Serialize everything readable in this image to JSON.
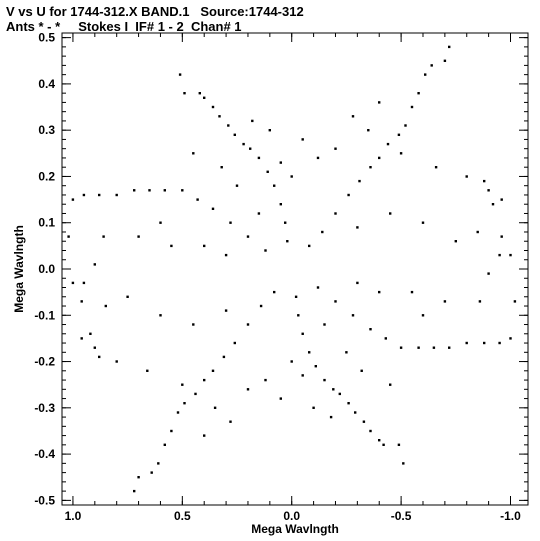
{
  "header": {
    "line1": "V vs U for 1744-312.X BAND.1   Source:1744-312",
    "line2": "Ants * - *     Stokes I  IF# 1 - 2  Chan# 1"
  },
  "chart_data": {
    "type": "scatter",
    "title": "V vs U for 1744-312.X BAND.1   Source:1744-312",
    "subtitle": "Ants * - *     Stokes I  IF# 1 - 2  Chan# 1",
    "xlabel": "Mega Wavlngth",
    "ylabel": "Mega Wavlngth",
    "xlim": [
      1.05,
      -1.08
    ],
    "ylim": [
      -0.51,
      0.51
    ],
    "x_reversed": true,
    "x_ticks": [
      1.0,
      0.5,
      0.0,
      -0.5,
      -1.0
    ],
    "x_tick_labels": [
      "1.0",
      "0.5",
      "0.0",
      "-0.5",
      "-1.0"
    ],
    "y_ticks": [
      0.5,
      0.4,
      0.3,
      0.2,
      0.1,
      0.0,
      -0.1,
      -0.2,
      -0.3,
      -0.4,
      -0.5
    ],
    "y_tick_labels": [
      "0.5",
      "0.4",
      "0.3",
      "0.2",
      "0.1",
      "0.0",
      "-0.1",
      "-0.2",
      "-0.3",
      "-0.4",
      "-0.5"
    ],
    "grid": false,
    "marker_color": "#000000",
    "pattern": "six-armed symmetric uv-coverage star; arms toward (0.51,0.42)/(-0.51,-0.42), (-0.72,0.48)/(0.72,-0.48), (1.0,0.15)/(-1.0,-0.15); points symmetric about origin",
    "series": [
      {
        "points": [
          [
            0.51,
            0.42
          ],
          [
            0.49,
            0.38
          ],
          [
            0.42,
            0.38
          ],
          [
            0.4,
            0.37
          ],
          [
            0.36,
            0.35
          ],
          [
            0.33,
            0.33
          ],
          [
            0.29,
            0.31
          ],
          [
            0.26,
            0.29
          ],
          [
            0.22,
            0.27
          ],
          [
            0.19,
            0.26
          ],
          [
            0.15,
            0.24
          ],
          [
            0.11,
            0.21
          ],
          [
            0.08,
            0.18
          ],
          [
            0.05,
            0.14
          ],
          [
            0.03,
            0.1
          ],
          [
            0.02,
            0.06
          ],
          [
            -0.72,
            0.48
          ],
          [
            -0.7,
            0.45
          ],
          [
            -0.64,
            0.44
          ],
          [
            -0.61,
            0.42
          ],
          [
            -0.58,
            0.38
          ],
          [
            -0.55,
            0.35
          ],
          [
            -0.52,
            0.31
          ],
          [
            -0.49,
            0.29
          ],
          [
            -0.44,
            0.27
          ],
          [
            -0.4,
            0.24
          ],
          [
            -0.36,
            0.22
          ],
          [
            -0.31,
            0.19
          ],
          [
            -0.26,
            0.16
          ],
          [
            -0.2,
            0.12
          ],
          [
            -0.14,
            0.08
          ],
          [
            -0.08,
            0.05
          ],
          [
            1.0,
            0.15
          ],
          [
            0.95,
            0.16
          ],
          [
            0.88,
            0.16
          ],
          [
            0.8,
            0.16
          ],
          [
            0.72,
            0.17
          ],
          [
            0.65,
            0.17
          ],
          [
            0.58,
            0.17
          ],
          [
            0.5,
            0.17
          ],
          [
            0.43,
            0.15
          ],
          [
            0.36,
            0.13
          ],
          [
            0.28,
            0.1
          ],
          [
            0.2,
            0.07
          ],
          [
            0.12,
            0.04
          ],
          [
            1.02,
            0.07
          ],
          [
            1.0,
            -0.03
          ],
          [
            0.96,
            -0.07
          ],
          [
            0.92,
            -0.14
          ],
          [
            0.88,
            -0.19
          ],
          [
            0.9,
            0.01
          ],
          [
            0.86,
            0.07
          ],
          [
            0.45,
            0.25
          ],
          [
            0.32,
            0.22
          ],
          [
            0.25,
            0.18
          ],
          [
            0.15,
            0.12
          ],
          [
            -0.2,
            0.26
          ],
          [
            -0.35,
            0.3
          ],
          [
            -0.5,
            0.25
          ],
          [
            -0.66,
            0.22
          ],
          [
            -0.8,
            0.2
          ],
          [
            -0.9,
            0.17
          ],
          [
            -0.96,
            0.15
          ],
          [
            0.7,
            0.07
          ],
          [
            0.6,
            0.1
          ],
          [
            0.55,
            0.05
          ],
          [
            0.4,
            0.05
          ],
          [
            0.3,
            0.03
          ],
          [
            -0.3,
            0.09
          ],
          [
            -0.45,
            0.12
          ],
          [
            -0.6,
            0.1
          ],
          [
            -0.75,
            0.06
          ],
          [
            -0.85,
            0.08
          ],
          [
            -0.95,
            0.03
          ],
          [
            0.1,
            0.3
          ],
          [
            0.05,
            0.23
          ],
          [
            -0.05,
            0.28
          ],
          [
            0.0,
            0.2
          ],
          [
            -0.12,
            0.24
          ],
          [
            0.18,
            0.32
          ],
          [
            -0.28,
            0.33
          ],
          [
            -0.4,
            0.36
          ]
        ]
      }
    ]
  }
}
